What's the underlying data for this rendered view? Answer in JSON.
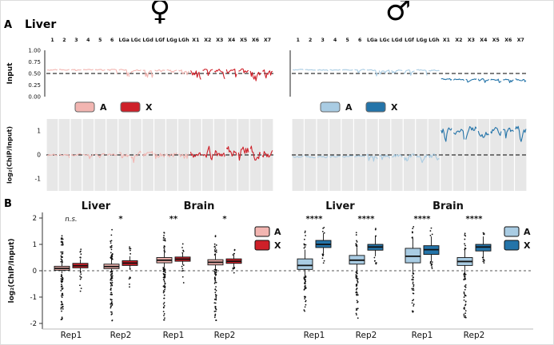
{
  "figure": {
    "panel_a_label": "A",
    "panel_b_label": "B",
    "title": "Liver",
    "female_symbol": "♀",
    "male_symbol": "♂"
  },
  "axis_labels": {
    "input": "Input",
    "log2": "log₂(ChIP/Input)"
  },
  "colors": {
    "female_a": "#F2B5B1",
    "female_x": "#CE2029",
    "male_a": "#A9CCE3",
    "male_x": "#2474A9",
    "band": "#E7E7E7"
  },
  "chart_data": [
    {
      "id": "female-input",
      "type": "line",
      "row": "input",
      "sex": "female",
      "ylabel": "Input",
      "ylim": [
        0,
        1
      ],
      "dashed_at": 0.5,
      "yticks": [
        {
          "v": 1,
          "label": "1.00"
        },
        {
          "v": 0.75,
          "label": "0.75"
        },
        {
          "v": 0.5,
          "label": "0.50"
        },
        {
          "v": 0.25,
          "label": "0.25"
        },
        {
          "v": 0,
          "label": "0.00"
        }
      ],
      "categories": [
        "1",
        "2",
        "3",
        "4",
        "5",
        "6",
        "LGa",
        "LGc",
        "LGd",
        "LGf",
        "LGg",
        "LGh",
        "X1",
        "X2",
        "X3",
        "X4",
        "X5",
        "X6",
        "X7"
      ],
      "legend": [
        {
          "label": "A",
          "color_key": "female_a"
        },
        {
          "label": "X",
          "color_key": "female_x"
        }
      ],
      "series": [
        {
          "group": "A",
          "color_key": "female_a",
          "chroms": [
            "1",
            "2",
            "3",
            "4",
            "5",
            "6"
          ],
          "mean": 0.58,
          "amp": 0.018,
          "spike_prob": 0.06,
          "spike_amp": 0.18
        },
        {
          "group": "A",
          "color_key": "female_a",
          "chroms": [
            "LGa",
            "LGc",
            "LGd",
            "LGf",
            "LGg",
            "LGh"
          ],
          "mean": 0.57,
          "amp": 0.028,
          "spike_prob": 0.22,
          "spike_amp": 0.3
        },
        {
          "group": "X",
          "color_key": "female_x",
          "chroms": [
            "X1",
            "X2",
            "X3",
            "X4",
            "X5",
            "X6",
            "X7"
          ],
          "mean": 0.57,
          "amp": 0.045,
          "spike_prob": 0.3,
          "spike_amp": 0.32
        }
      ]
    },
    {
      "id": "male-input",
      "type": "line",
      "row": "input",
      "sex": "male",
      "ylabel": "Input",
      "ylim": [
        0,
        1
      ],
      "dashed_at": 0.5,
      "yticks": [
        {
          "v": 1,
          "label": "1.00"
        },
        {
          "v": 0.75,
          "label": "0.75"
        },
        {
          "v": 0.5,
          "label": "0.50"
        },
        {
          "v": 0.25,
          "label": "0.25"
        },
        {
          "v": 0,
          "label": "0.00"
        }
      ],
      "categories": [
        "1",
        "2",
        "3",
        "4",
        "5",
        "6",
        "LGa",
        "LGc",
        "LGd",
        "LGf",
        "LGg",
        "LGh",
        "X1",
        "X2",
        "X3",
        "X4",
        "X5",
        "X6",
        "X7"
      ],
      "legend": [
        {
          "label": "A",
          "color_key": "male_a"
        },
        {
          "label": "X",
          "color_key": "male_x"
        }
      ],
      "series": [
        {
          "group": "A",
          "color_key": "male_a",
          "chroms": [
            "1",
            "2",
            "3",
            "4",
            "5",
            "6"
          ],
          "mean": 0.58,
          "amp": 0.018,
          "spike_prob": 0.06,
          "spike_amp": 0.18
        },
        {
          "group": "A",
          "color_key": "male_a",
          "chroms": [
            "LGa",
            "LGc",
            "LGd",
            "LGf",
            "LGg",
            "LGh"
          ],
          "mean": 0.57,
          "amp": 0.028,
          "spike_prob": 0.2,
          "spike_amp": 0.28
        },
        {
          "group": "X",
          "color_key": "male_x",
          "chroms": [
            "X1",
            "X2",
            "X3",
            "X4",
            "X5",
            "X6",
            "X7"
          ],
          "mean": 0.37,
          "amp": 0.035,
          "spike_prob": 0.12,
          "spike_amp": 0.15
        }
      ]
    },
    {
      "id": "female-log2",
      "type": "line",
      "row": "log2",
      "sex": "female",
      "ylabel": "log₂(ChIP/Input)",
      "ylim": [
        -1.5,
        1.5
      ],
      "dashed_at": 0,
      "yticks": [
        {
          "v": 1,
          "label": "1"
        },
        {
          "v": 0,
          "label": "0"
        },
        {
          "v": -1,
          "label": "-1"
        }
      ],
      "categories": [
        "1",
        "2",
        "3",
        "4",
        "5",
        "6",
        "LGa",
        "LGc",
        "LGd",
        "LGf",
        "LGg",
        "LGh",
        "X1",
        "X2",
        "X3",
        "X4",
        "X5",
        "X6",
        "X7"
      ],
      "series": [
        {
          "group": "A",
          "color_key": "female_a",
          "chroms": [
            "1",
            "2",
            "3",
            "4",
            "5",
            "6"
          ],
          "mean": 0,
          "amp": 0.07,
          "spike_prob": 0.05,
          "spike_amp": 0.3
        },
        {
          "group": "A",
          "color_key": "female_a",
          "chroms": [
            "LGa",
            "LGc",
            "LGd",
            "LGf",
            "LGg",
            "LGh"
          ],
          "mean": 0.02,
          "amp": 0.2,
          "spike_prob": 0.15,
          "spike_amp": 0.45
        },
        {
          "group": "X",
          "color_key": "female_x",
          "chroms": [
            "X1",
            "X2",
            "X3",
            "X4",
            "X5",
            "X6",
            "X7"
          ],
          "mean": 0.12,
          "amp": 0.38,
          "spike_prob": 0.15,
          "spike_amp": 0.5
        }
      ]
    },
    {
      "id": "male-log2",
      "type": "line",
      "row": "log2",
      "sex": "male",
      "ylabel": "log₂(ChIP/Input)",
      "ylim": [
        -1.5,
        1.5
      ],
      "dashed_at": 0,
      "yticks": [
        {
          "v": 1,
          "label": "1"
        },
        {
          "v": 0,
          "label": "0"
        },
        {
          "v": -1,
          "label": "-1"
        }
      ],
      "categories": [
        "1",
        "2",
        "3",
        "4",
        "5",
        "6",
        "LGa",
        "LGc",
        "LGd",
        "LGf",
        "LGg",
        "LGh",
        "X1",
        "X2",
        "X3",
        "X4",
        "X5",
        "X6",
        "X7"
      ],
      "series": [
        {
          "group": "A",
          "color_key": "male_a",
          "chroms": [
            "1",
            "2",
            "3",
            "4",
            "5",
            "6"
          ],
          "mean": -0.07,
          "amp": 0.07,
          "spike_prob": 0.05,
          "spike_amp": 0.25
        },
        {
          "group": "A",
          "color_key": "male_a",
          "chroms": [
            "LGa",
            "LGc",
            "LGd",
            "LGf",
            "LGg",
            "LGh"
          ],
          "mean": -0.04,
          "amp": 0.18,
          "spike_prob": 0.12,
          "spike_amp": 0.4
        },
        {
          "group": "X",
          "color_key": "male_x",
          "chroms": [
            "X1",
            "X2",
            "X3",
            "X4",
            "X5",
            "X6",
            "X7"
          ],
          "mean": 1.02,
          "amp": 0.3,
          "spike_prob": 0.2,
          "spike_amp": 0.8
        }
      ]
    },
    {
      "id": "female-box",
      "type": "box",
      "sex": "female",
      "ylabel": "log₂(ChIP/Input)",
      "ylim": [
        -2.2,
        2.2
      ],
      "dashed_at": 0,
      "yticks": [
        {
          "v": 2,
          "label": "2"
        },
        {
          "v": 1,
          "label": "1"
        },
        {
          "v": 0,
          "label": "0"
        },
        {
          "v": -1,
          "label": "-1"
        },
        {
          "v": -2,
          "label": "-2"
        }
      ],
      "legend": [
        {
          "label": "A",
          "color_key": "female_a"
        },
        {
          "label": "X",
          "color_key": "female_x"
        }
      ],
      "groups": [
        {
          "title": "Liver",
          "reps": [
            {
              "label": "Rep1",
              "sig": "n.s.",
              "boxes": [
                {
                  "class": "A",
                  "lo": -0.1,
                  "q1": 0.02,
                  "med": 0.09,
                  "q3": 0.17,
                  "hi": 0.32,
                  "out_lo": -1.95,
                  "n_lo": 50,
                  "out_hi": 1.35,
                  "n_hi": 28
                },
                {
                  "class": "X",
                  "lo": -0.02,
                  "q1": 0.11,
                  "med": 0.19,
                  "q3": 0.28,
                  "hi": 0.43,
                  "out_lo": -0.9,
                  "n_lo": 10,
                  "out_hi": 0.95,
                  "n_hi": 7
                }
              ]
            },
            {
              "label": "Rep2",
              "sig": "*",
              "boxes": [
                {
                  "class": "A",
                  "lo": -0.02,
                  "q1": 0.08,
                  "med": 0.16,
                  "q3": 0.25,
                  "hi": 0.42,
                  "out_lo": -1.95,
                  "n_lo": 55,
                  "out_hi": 1.6,
                  "n_hi": 30
                },
                {
                  "class": "X",
                  "lo": 0.08,
                  "q1": 0.2,
                  "med": 0.29,
                  "q3": 0.38,
                  "hi": 0.55,
                  "out_lo": -0.7,
                  "n_lo": 8,
                  "out_hi": 1.05,
                  "n_hi": 6
                }
              ]
            }
          ]
        },
        {
          "title": "Brain",
          "reps": [
            {
              "label": "Rep1",
              "sig": "**",
              "boxes": [
                {
                  "class": "A",
                  "lo": 0.12,
                  "q1": 0.3,
                  "med": 0.4,
                  "q3": 0.5,
                  "hi": 0.7,
                  "out_lo": -1.9,
                  "n_lo": 55,
                  "out_hi": 1.55,
                  "n_hi": 18
                },
                {
                  "class": "X",
                  "lo": 0.22,
                  "q1": 0.36,
                  "med": 0.44,
                  "q3": 0.52,
                  "hi": 0.66,
                  "out_lo": -0.5,
                  "n_lo": 7,
                  "out_hi": 1.1,
                  "n_hi": 5
                }
              ]
            },
            {
              "label": "Rep2",
              "sig": "*",
              "boxes": [
                {
                  "class": "A",
                  "lo": 0.05,
                  "q1": 0.22,
                  "med": 0.32,
                  "q3": 0.42,
                  "hi": 0.6,
                  "out_lo": -1.9,
                  "n_lo": 50,
                  "out_hi": 1.45,
                  "n_hi": 16
                },
                {
                  "class": "X",
                  "lo": 0.15,
                  "q1": 0.28,
                  "med": 0.36,
                  "q3": 0.45,
                  "hi": 0.6,
                  "out_lo": -0.4,
                  "n_lo": 6,
                  "out_hi": 1.0,
                  "n_hi": 5
                }
              ]
            }
          ]
        }
      ]
    },
    {
      "id": "male-box",
      "type": "box",
      "sex": "male",
      "ylabel": "log₂(ChIP/Input)",
      "ylim": [
        -2.2,
        2.2
      ],
      "dashed_at": 0,
      "yticks": [
        {
          "v": 2,
          "label": "2"
        },
        {
          "v": 1,
          "label": "1"
        },
        {
          "v": 0,
          "label": "0"
        },
        {
          "v": -1,
          "label": "-1"
        },
        {
          "v": -2,
          "label": "-2"
        }
      ],
      "legend": [
        {
          "label": "A",
          "color_key": "male_a"
        },
        {
          "label": "X",
          "color_key": "male_x"
        }
      ],
      "groups": [
        {
          "title": "Liver",
          "reps": [
            {
              "label": "Rep1",
              "sig": "****",
              "boxes": [
                {
                  "class": "A",
                  "lo": -0.2,
                  "q1": 0.05,
                  "med": 0.2,
                  "q3": 0.45,
                  "hi": 0.8,
                  "out_lo": -1.7,
                  "n_lo": 35,
                  "out_hi": 1.55,
                  "n_hi": 10
                },
                {
                  "class": "X",
                  "lo": 0.65,
                  "q1": 0.88,
                  "med": 1.0,
                  "q3": 1.15,
                  "hi": 1.42,
                  "out_lo": 0.25,
                  "n_lo": 9,
                  "out_hi": 1.7,
                  "n_hi": 4
                }
              ]
            },
            {
              "label": "Rep2",
              "sig": "****",
              "boxes": [
                {
                  "class": "A",
                  "lo": -0.05,
                  "q1": 0.25,
                  "med": 0.4,
                  "q3": 0.58,
                  "hi": 0.9,
                  "out_lo": -1.85,
                  "n_lo": 40,
                  "out_hi": 1.6,
                  "n_hi": 9
                },
                {
                  "class": "X",
                  "lo": 0.55,
                  "q1": 0.78,
                  "med": 0.9,
                  "q3": 1.0,
                  "hi": 1.3,
                  "out_lo": 0.2,
                  "n_lo": 7,
                  "out_hi": 1.6,
                  "n_hi": 4
                }
              ]
            }
          ]
        },
        {
          "title": "Brain",
          "reps": [
            {
              "label": "Rep1",
              "sig": "****",
              "boxes": [
                {
                  "class": "A",
                  "lo": -0.1,
                  "q1": 0.3,
                  "med": 0.55,
                  "q3": 0.85,
                  "hi": 1.25,
                  "out_lo": -1.6,
                  "n_lo": 30,
                  "out_hi": 1.7,
                  "n_hi": 7
                },
                {
                  "class": "X",
                  "lo": 0.35,
                  "q1": 0.62,
                  "med": 0.8,
                  "q3": 0.95,
                  "hi": 1.3,
                  "out_lo": 0.0,
                  "n_lo": 8,
                  "out_hi": 1.65,
                  "n_hi": 4
                }
              ]
            },
            {
              "label": "Rep2",
              "sig": "****",
              "boxes": [
                {
                  "class": "A",
                  "lo": -0.1,
                  "q1": 0.2,
                  "med": 0.35,
                  "q3": 0.5,
                  "hi": 0.8,
                  "out_lo": -1.9,
                  "n_lo": 45,
                  "out_hi": 1.5,
                  "n_hi": 10
                },
                {
                  "class": "X",
                  "lo": 0.5,
                  "q1": 0.75,
                  "med": 0.9,
                  "q3": 1.0,
                  "hi": 1.3,
                  "out_lo": 0.15,
                  "n_lo": 7,
                  "out_hi": 1.6,
                  "n_hi": 4
                }
              ]
            }
          ]
        }
      ]
    }
  ]
}
